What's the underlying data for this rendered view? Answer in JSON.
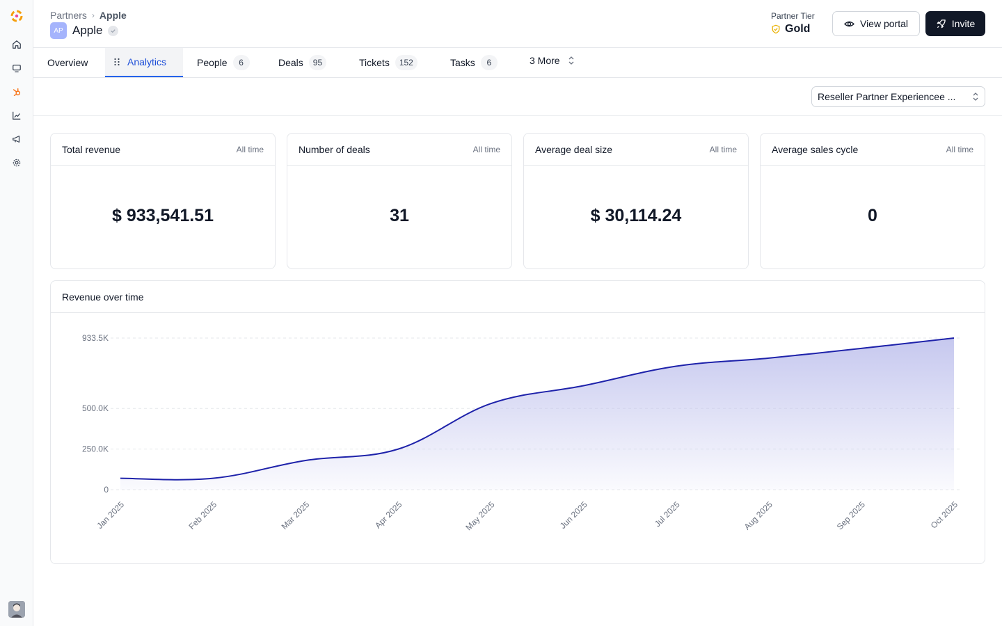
{
  "breadcrumb": {
    "parent": "Partners",
    "current": "Apple"
  },
  "partner": {
    "initials": "AP",
    "name": "Apple"
  },
  "tier": {
    "label": "Partner Tier",
    "value": "Gold"
  },
  "actions": {
    "view_portal": "View portal",
    "invite": "Invite"
  },
  "tabs": [
    {
      "label": "Overview",
      "count": ""
    },
    {
      "label": "Analytics",
      "count": ""
    },
    {
      "label": "People",
      "count": "6"
    },
    {
      "label": "Deals",
      "count": "95"
    },
    {
      "label": "Tickets",
      "count": "152"
    },
    {
      "label": "Tasks",
      "count": "6"
    },
    {
      "label": "3 More",
      "count": ""
    }
  ],
  "filter": {
    "selected": "Reseller Partner Experiencee ..."
  },
  "kpis": [
    {
      "title": "Total revenue",
      "period": "All time",
      "value": "$ 933,541.51"
    },
    {
      "title": "Number of deals",
      "period": "All time",
      "value": "31"
    },
    {
      "title": "Average deal size",
      "period": "All time",
      "value": "$ 30,114.24"
    },
    {
      "title": "Average sales cycle",
      "period": "All time",
      "value": "0"
    }
  ],
  "chart": {
    "title": "Revenue over time"
  },
  "colors": {
    "accent": "#2563eb",
    "line": "#1e22aa",
    "area": "#c7c9ef",
    "gold": "#eab308"
  },
  "chart_data": {
    "type": "area",
    "title": "Revenue over time",
    "x": [
      "Jan 2025",
      "Feb 2025",
      "Mar 2025",
      "Apr 2025",
      "May 2025",
      "Jun 2025",
      "Jul 2025",
      "Aug 2025",
      "Sep 2025",
      "Oct 2025"
    ],
    "series": [
      {
        "values": [
          70000,
          70000,
          180000,
          250000,
          530000,
          640000,
          760000,
          810000,
          870000,
          933541.51
        ]
      }
    ],
    "yticks": [
      0,
      250000,
      500000,
      933500
    ],
    "ytick_labels": [
      "0",
      "250.0K",
      "500.0K",
      "933.5K"
    ],
    "ylim": [
      0,
      933500
    ],
    "grid": true,
    "legend": "none"
  }
}
